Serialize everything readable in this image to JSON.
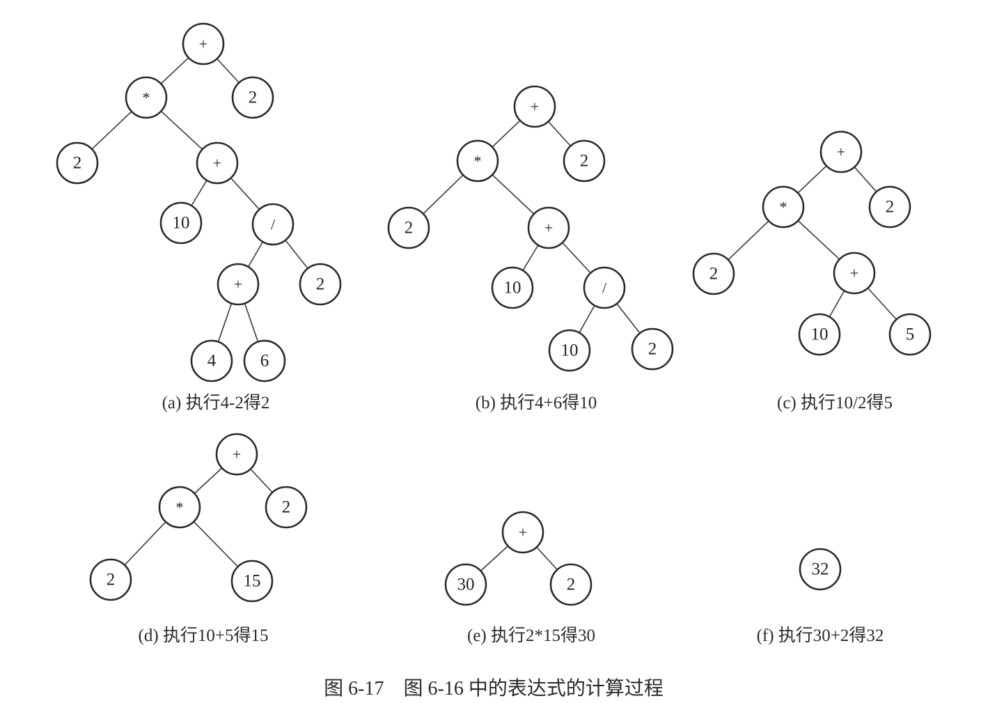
{
  "panels": [
    {
      "id": "a",
      "caption": "(a) 执行4-2得2",
      "nodes": [
        {
          "label": "+",
          "kind": "operator"
        },
        {
          "label": "*",
          "kind": "operator"
        },
        {
          "label": "2",
          "kind": "operand"
        },
        {
          "label": "2",
          "kind": "operand"
        },
        {
          "label": "+",
          "kind": "operator"
        },
        {
          "label": "10",
          "kind": "operand"
        },
        {
          "label": "/",
          "kind": "operator"
        },
        {
          "label": "+",
          "kind": "operator"
        },
        {
          "label": "2",
          "kind": "operand"
        },
        {
          "label": "4",
          "kind": "operand"
        },
        {
          "label": "6",
          "kind": "operand"
        }
      ],
      "edges": [
        [
          0,
          1
        ],
        [
          0,
          2
        ],
        [
          1,
          3
        ],
        [
          1,
          4
        ],
        [
          4,
          5
        ],
        [
          4,
          6
        ],
        [
          6,
          7
        ],
        [
          6,
          8
        ],
        [
          7,
          9
        ],
        [
          7,
          10
        ]
      ]
    },
    {
      "id": "b",
      "caption": "(b) 执行4+6得10",
      "nodes": [
        {
          "label": "+",
          "kind": "operator"
        },
        {
          "label": "*",
          "kind": "operator"
        },
        {
          "label": "2",
          "kind": "operand"
        },
        {
          "label": "2",
          "kind": "operand"
        },
        {
          "label": "+",
          "kind": "operator"
        },
        {
          "label": "10",
          "kind": "operand"
        },
        {
          "label": "/",
          "kind": "operator"
        },
        {
          "label": "10",
          "kind": "operand"
        },
        {
          "label": "2",
          "kind": "operand"
        }
      ],
      "edges": [
        [
          0,
          1
        ],
        [
          0,
          2
        ],
        [
          1,
          3
        ],
        [
          1,
          4
        ],
        [
          4,
          5
        ],
        [
          4,
          6
        ],
        [
          6,
          7
        ],
        [
          6,
          8
        ]
      ]
    },
    {
      "id": "c",
      "caption": "(c) 执行10/2得5",
      "nodes": [
        {
          "label": "+",
          "kind": "operator"
        },
        {
          "label": "*",
          "kind": "operator"
        },
        {
          "label": "2",
          "kind": "operand"
        },
        {
          "label": "2",
          "kind": "operand"
        },
        {
          "label": "+",
          "kind": "operator"
        },
        {
          "label": "10",
          "kind": "operand"
        },
        {
          "label": "5",
          "kind": "operand"
        }
      ],
      "edges": [
        [
          0,
          1
        ],
        [
          0,
          2
        ],
        [
          1,
          3
        ],
        [
          1,
          4
        ],
        [
          4,
          5
        ],
        [
          4,
          6
        ]
      ]
    },
    {
      "id": "d",
      "caption": "(d) 执行10+5得15",
      "nodes": [
        {
          "label": "+",
          "kind": "operator"
        },
        {
          "label": "*",
          "kind": "operator"
        },
        {
          "label": "2",
          "kind": "operand"
        },
        {
          "label": "2",
          "kind": "operand"
        },
        {
          "label": "15",
          "kind": "operand"
        }
      ],
      "edges": [
        [
          0,
          1
        ],
        [
          0,
          2
        ],
        [
          1,
          3
        ],
        [
          1,
          4
        ]
      ]
    },
    {
      "id": "e",
      "caption": "(e) 执行2*15得30",
      "nodes": [
        {
          "label": "+",
          "kind": "operator"
        },
        {
          "label": "30",
          "kind": "operand"
        },
        {
          "label": "2",
          "kind": "operand"
        }
      ],
      "edges": [
        [
          0,
          1
        ],
        [
          0,
          2
        ]
      ]
    },
    {
      "id": "f",
      "caption": "(f) 执行30+2得32",
      "nodes": [
        {
          "label": "32",
          "kind": "operand"
        }
      ],
      "edges": []
    }
  ],
  "figure_caption": "图 6-17　图 6-16 中的表达式的计算过程",
  "colors": {
    "stroke": "#2a2a2a",
    "edge": "#3a3a3a",
    "text": "#222222",
    "background": "#ffffff"
  }
}
